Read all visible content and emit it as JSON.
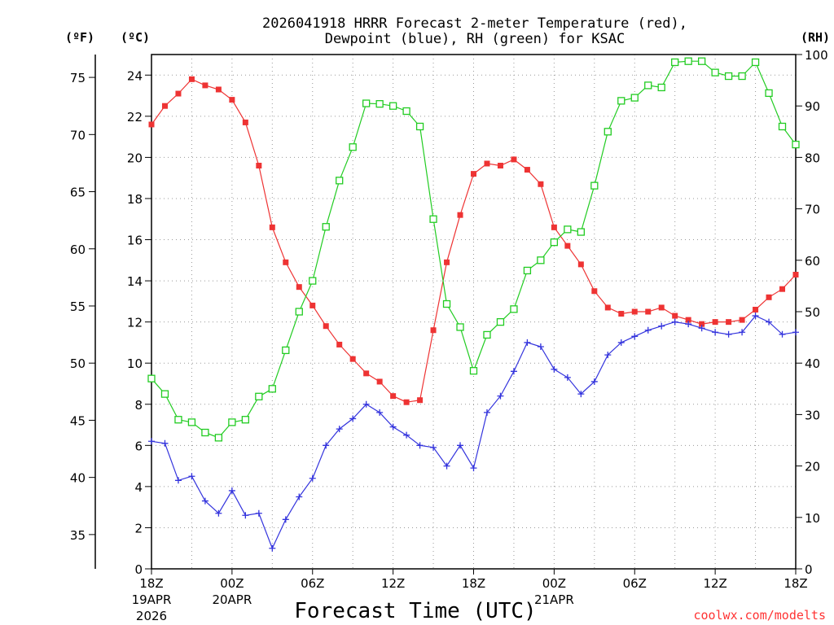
{
  "chart_data": {
    "type": "line",
    "title": [
      "2026041918 HRRR Forecast 2-meter Temperature (red),",
      "Dewpoint (blue), RH (green) for KSAC"
    ],
    "xlabel": "Forecast Time (UTC)",
    "credit": "coolwx.com/modelts",
    "unit_labels": {
      "fahrenheit": "(ºF)",
      "celsius": "(ºC)",
      "rh": "(RH)"
    },
    "x_hours": [
      0,
      1,
      2,
      3,
      4,
      5,
      6,
      7,
      8,
      9,
      10,
      11,
      12,
      13,
      14,
      15,
      16,
      17,
      18,
      19,
      20,
      21,
      22,
      23,
      24,
      25,
      26,
      27,
      28,
      29,
      30,
      31,
      32,
      33,
      34,
      35,
      36,
      37,
      38,
      39,
      40,
      41,
      42,
      43,
      44,
      45,
      46,
      47,
      48
    ],
    "xlim": [
      0,
      48
    ],
    "x_ticks": [
      {
        "hour": 0,
        "label": "18Z",
        "sub1": "19APR",
        "sub2": "2026"
      },
      {
        "hour": 6,
        "label": "00Z",
        "sub1": "20APR",
        "sub2": ""
      },
      {
        "hour": 12,
        "label": "06Z",
        "sub1": "",
        "sub2": ""
      },
      {
        "hour": 18,
        "label": "12Z",
        "sub1": "",
        "sub2": ""
      },
      {
        "hour": 24,
        "label": "18Z",
        "sub1": "",
        "sub2": ""
      },
      {
        "hour": 30,
        "label": "00Z",
        "sub1": "21APR",
        "sub2": ""
      },
      {
        "hour": 36,
        "label": "06Z",
        "sub1": "",
        "sub2": ""
      },
      {
        "hour": 42,
        "label": "12Z",
        "sub1": "",
        "sub2": ""
      },
      {
        "hour": 48,
        "label": "18Z",
        "sub1": "",
        "sub2": ""
      }
    ],
    "ylim_c": [
      0,
      25
    ],
    "y_ticks_c": [
      "0",
      "2",
      "4",
      "6",
      "8",
      "10",
      "12",
      "14",
      "16",
      "18",
      "20",
      "22",
      "24"
    ],
    "y_ticks_f": [
      "35",
      "40",
      "45",
      "50",
      "55",
      "60",
      "65",
      "70",
      "75"
    ],
    "ylim_rh": [
      0,
      100
    ],
    "y_ticks_rh": [
      "0",
      "10",
      "20",
      "30",
      "40",
      "50",
      "60",
      "70",
      "80",
      "90",
      "100"
    ],
    "series": [
      {
        "name": "Temperature",
        "unit": "C",
        "color": "#ee3333",
        "marker": "filled-square",
        "values": [
          21.6,
          22.5,
          23.1,
          23.8,
          23.5,
          23.3,
          22.8,
          21.7,
          19.6,
          16.6,
          14.9,
          13.7,
          12.8,
          11.8,
          10.9,
          10.2,
          9.5,
          9.1,
          8.4,
          8.1,
          8.2,
          11.6,
          14.9,
          17.2,
          19.2,
          19.7,
          19.6,
          19.9,
          19.4,
          18.7,
          16.6,
          15.7,
          14.8,
          13.5,
          12.7,
          12.4,
          12.5,
          12.5,
          12.7,
          12.3,
          12.1,
          11.9,
          12.0,
          12.0,
          12.1,
          12.6,
          13.2,
          13.6,
          14.3
        ]
      },
      {
        "name": "Dewpoint",
        "unit": "C",
        "color": "#3333dd",
        "marker": "plus",
        "values": [
          6.2,
          6.1,
          4.3,
          4.5,
          3.3,
          2.7,
          3.8,
          2.6,
          2.7,
          1.0,
          2.4,
          3.5,
          4.4,
          6.0,
          6.8,
          7.3,
          8.0,
          7.6,
          6.9,
          6.5,
          6.0,
          5.9,
          5.0,
          6.0,
          4.9,
          7.6,
          8.4,
          9.6,
          11.0,
          10.8,
          9.7,
          9.3,
          8.5,
          9.1,
          10.4,
          11.0,
          11.3,
          11.6,
          11.8,
          12.0,
          11.9,
          11.7,
          11.5,
          11.4,
          11.5,
          12.3,
          12.0,
          11.4,
          11.5
        ]
      },
      {
        "name": "RH",
        "unit": "%",
        "color": "#22cc22",
        "marker": "open-square",
        "values": [
          37,
          34,
          29,
          28.5,
          26.5,
          25.5,
          28.5,
          29,
          33.5,
          35,
          42.5,
          50,
          56,
          66.5,
          75.5,
          82,
          90.5,
          90.4,
          90,
          89,
          86,
          68,
          51.5,
          47,
          38.5,
          45.5,
          48,
          50.5,
          58,
          60,
          63.5,
          66,
          65.5,
          74.5,
          85,
          91,
          91.6,
          94,
          93.6,
          98.5,
          98.7,
          98.7,
          96.5,
          95.8,
          95.8,
          98.5,
          92.5,
          86,
          82.5
        ]
      }
    ]
  }
}
